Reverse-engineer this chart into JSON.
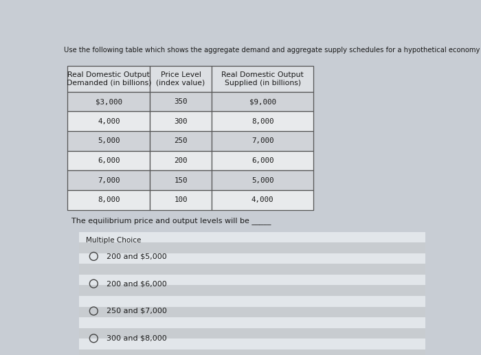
{
  "title": "Use the following table which shows the aggregate demand and aggregate supply schedules for a hypothetical economy to answer the next question.",
  "col_headers": [
    "Real Domestic Output\nDemanded (in billions)",
    "Price Level\n(index value)",
    "Real Domestic Output\nSupplied (in billions)"
  ],
  "rows": [
    [
      "$3,000",
      "350",
      "$9,000"
    ],
    [
      "4,000",
      "300",
      "8,000"
    ],
    [
      "5,000",
      "250",
      "7,000"
    ],
    [
      "6,000",
      "200",
      "6,000"
    ],
    [
      "7,000",
      "150",
      "5,000"
    ],
    [
      "8,000",
      "100",
      "4,000"
    ]
  ],
  "question_text": "The equilibrium price and output levels will be _____",
  "multiple_choice_label": "Multiple Choice",
  "choices": [
    "200 and $5,000",
    "200 and $6,000",
    "250 and $7,000",
    "300 and $8,000"
  ],
  "bg_color": "#c8cdd4",
  "table_header_bg": "#dcdfe3",
  "table_row_light": "#e8eaec",
  "table_row_dark": "#d0d3d8",
  "table_border": "#555555",
  "mc_bg_base": "#d8dce0",
  "mc_stripe_light": "#e2e6ea",
  "mc_stripe_dark": "#c8ccd0",
  "text_color": "#1a1a1a",
  "title_fontsize": 7.2,
  "table_fontsize": 7.8,
  "question_fontsize": 8.0,
  "mc_fontsize": 7.5,
  "choice_fontsize": 8.0
}
